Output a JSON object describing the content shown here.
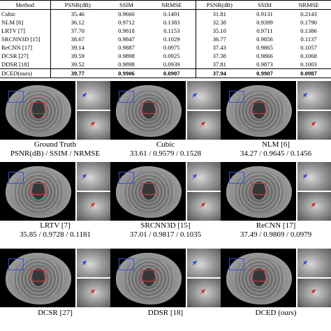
{
  "table": {
    "headers": [
      "Method",
      "PSNR(dB)",
      "SSIM",
      "NRMSE",
      "PSNR(dB)",
      "SSIM",
      "NRMSE"
    ],
    "rows": [
      {
        "method": "Cubic",
        "v": [
          "35.46",
          "0.9660",
          "0.1491",
          "31.81",
          "0.9131",
          "0.2143"
        ]
      },
      {
        "method": "NLM [6]",
        "v": [
          "36.12",
          "0.9712",
          "0.1383",
          "32.38",
          "0.9399",
          "0.1790"
        ]
      },
      {
        "method": "LRTV [7]",
        "v": [
          "37.70",
          "0.9818",
          "0.1153",
          "35.10",
          "0.9711",
          "0.1386"
        ]
      },
      {
        "method": "SRCNN3D [15]",
        "v": [
          "38.67",
          "0.9847",
          "0.1029",
          "36.77",
          "0.9856",
          "0.1137"
        ]
      },
      {
        "method": "ReCNN [17]",
        "v": [
          "39.14",
          "0.9887",
          "0.0975",
          "37.43",
          "0.9865",
          "0.1057"
        ]
      },
      {
        "method": "DCSR [27]",
        "v": [
          "39.59",
          "0.9898",
          "0.0925",
          "37.38",
          "0.9866",
          "0.1068"
        ]
      },
      {
        "method": "DDSR [18]",
        "v": [
          "39.52",
          "0.9898",
          "0.0939",
          "37.81",
          "0.9873",
          "0.1003"
        ]
      },
      {
        "method": "DCED(ours)",
        "v": [
          "39.77",
          "0.9906",
          "0.0907",
          "37.94",
          "0.9907",
          "0.0987"
        ]
      }
    ]
  },
  "figure": {
    "panels": [
      {
        "name": "Ground Truth",
        "metrics": "PSNR(dB) / SSIM / NRMSE"
      },
      {
        "name": "Cubic",
        "metrics": "33.61 / 0.9579 / 0.1528"
      },
      {
        "name": "NLM [6]",
        "metrics": "34.27 / 0.9645 / 0.1456"
      },
      {
        "name": "LRTV [7]",
        "metrics": "35.85 / 0.9728 / 0.1181"
      },
      {
        "name": "SRCNN3D [15]",
        "metrics": "37.01 / 0.9817 / 0.1035"
      },
      {
        "name": "ReCNN [17]",
        "metrics": "37.49 / 0.9869 / 0.0979"
      },
      {
        "name": "DCSR [27]",
        "metrics": ""
      },
      {
        "name": "DDSR [18]",
        "metrics": ""
      },
      {
        "name": "DCED (ours)",
        "metrics": ""
      }
    ]
  },
  "colors": {
    "roi_blue": "#3a4fe0",
    "roi_red": "#e23a3a",
    "arrow_blue": "#2f43e6",
    "arrow_red": "#e01f1f"
  },
  "icons": {
    "blue_arrow": "arrow-up-right-icon",
    "red_arrow": "arrow-up-right-icon"
  }
}
